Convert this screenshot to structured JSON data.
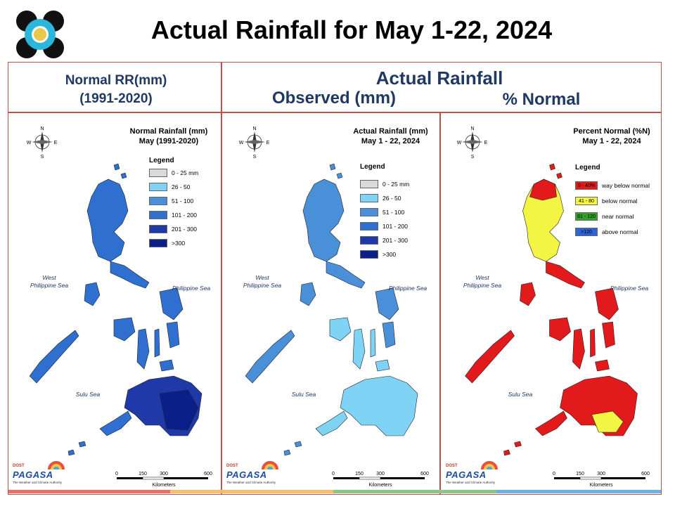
{
  "title": "Actual Rainfall for May 1-22, 2024",
  "header": {
    "left_line1": "Normal RR(mm)",
    "left_line2": "(1991-2020)",
    "actual": "Actual Rainfall",
    "observed": "Observed (mm)",
    "percent": "% Normal"
  },
  "panels": [
    {
      "title1": "Normal Rainfall (mm)",
      "title2": "May (1991-2020)",
      "legend_title": "Legend",
      "legend": [
        {
          "label": "0 - 25 mm",
          "color": "#d9d9d9"
        },
        {
          "label": "26 - 50",
          "color": "#7fd4f5"
        },
        {
          "label": "51 - 100",
          "color": "#4a90d9"
        },
        {
          "label": "101 - 200",
          "color": "#2e6fd0"
        },
        {
          "label": "201 - 300",
          "color": "#2039a8"
        },
        {
          "label": ">300",
          "color": "#0a1f8a"
        }
      ]
    },
    {
      "title1": "Actual Rainfall (mm)",
      "title2": "May 1 - 22, 2024",
      "legend_title": "Legend",
      "legend": [
        {
          "label": "0 - 25 mm",
          "color": "#d9d9d9"
        },
        {
          "label": "26 - 50",
          "color": "#7fd4f5"
        },
        {
          "label": "51 - 100",
          "color": "#4a90d9"
        },
        {
          "label": "101 - 200",
          "color": "#2e6fd0"
        },
        {
          "label": "201 - 300",
          "color": "#2039a8"
        },
        {
          "label": ">300",
          "color": "#0a1f8a"
        }
      ]
    },
    {
      "title1": "Percent Normal (%N)",
      "title2": "May 1 - 22, 2024",
      "legend_title": "Legend",
      "legend": [
        {
          "swatch": "0 - 40%",
          "label": "way below normal",
          "color": "#e31a1c"
        },
        {
          "swatch": "41 - 80",
          "label": "below normal",
          "color": "#f4f442"
        },
        {
          "swatch": "81 - 120",
          "label": "near normal",
          "color": "#33a02c"
        },
        {
          "swatch": ">120",
          "label": "above normal",
          "color": "#2a64d8"
        }
      ]
    }
  ],
  "seas": {
    "west1": "West",
    "west2": "Philippine Sea",
    "east": "Philippine Sea",
    "sulu": "Sulu Sea"
  },
  "compass": {
    "n": "N",
    "s": "S",
    "e": "E",
    "w": "W"
  },
  "scale": {
    "ticks": [
      "0",
      "150",
      "300",
      "600"
    ],
    "unit": "Kilometers"
  },
  "brand": {
    "name": "PAGASA",
    "top": "DOST",
    "tag": "The Weather and Climate Authority"
  },
  "colors": {
    "frame": "#c0504d",
    "header_text": "#1f3864"
  }
}
